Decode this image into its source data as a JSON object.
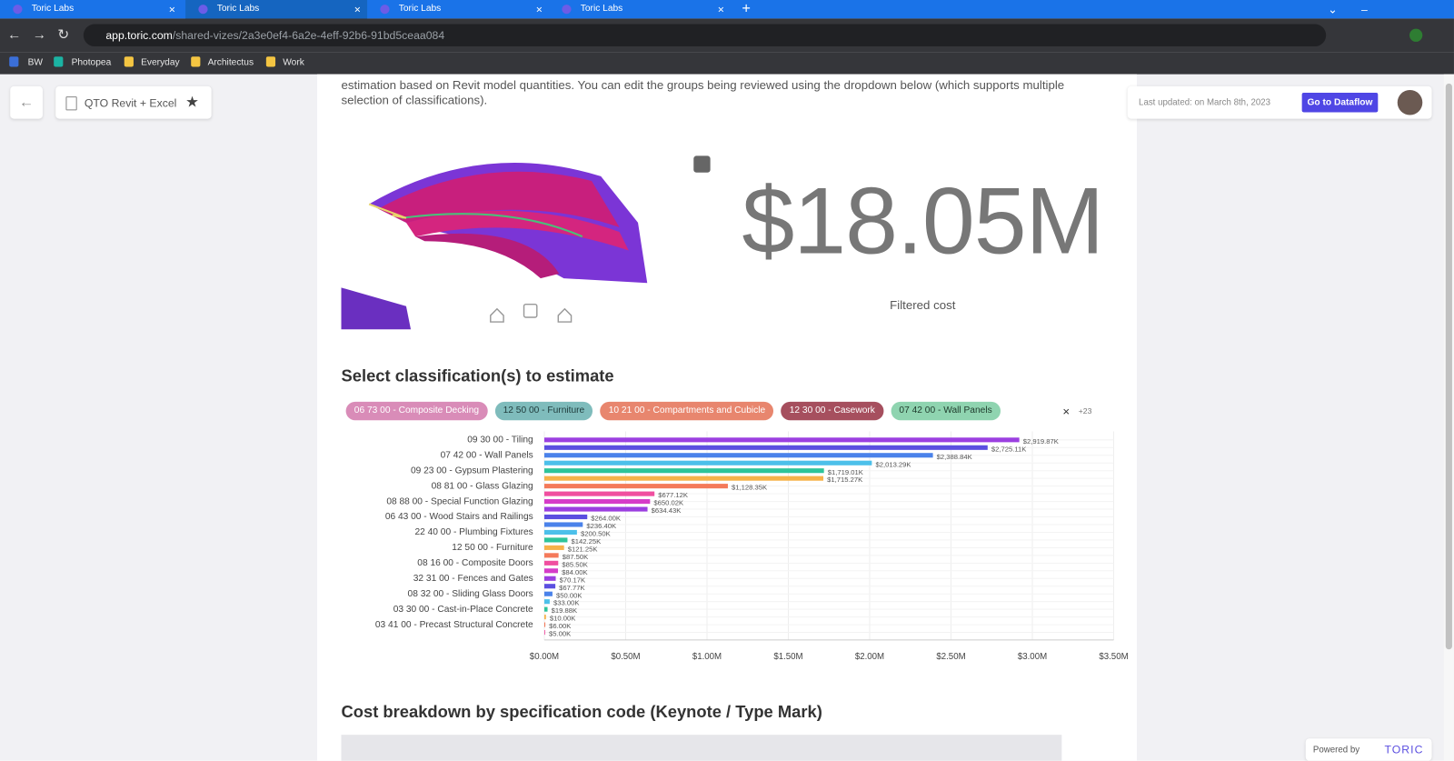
{
  "browser": {
    "tabs": [
      "Toric Labs",
      "Toric Labs",
      "Toric Labs",
      "Toric Labs"
    ],
    "url_host": "app.toric.com",
    "url_path": "/shared-vizes/2a3e0ef4-6a2e-4eff-92b6-91bd5ceaa084",
    "bookmarks": [
      "BW",
      "Photopea",
      "Everyday",
      "Architectus",
      "Work"
    ]
  },
  "header": {
    "title": "QTO Revit + Excel",
    "last_updated": "Last updated: on March 8th, 2023",
    "button": "Go to Dataflow"
  },
  "intro": "estimation based on Revit model quantities. You can edit the groups being reviewed using the dropdown below (which supports multiple selection of classifications).",
  "kpi": {
    "value": "$18.05M",
    "label": "Filtered cost"
  },
  "section_title": "Select classification(s) to estimate",
  "chips": [
    {
      "label": "06 73 00 - Composite Decking",
      "color": "#d98cb8",
      "text_color": "#ffffff"
    },
    {
      "label": "12 50 00 - Furniture",
      "color": "#7fbcbc",
      "text_color": "#1f3b3b"
    },
    {
      "label": "10 21 00 - Compartments and Cubicle",
      "color": "#e8866e",
      "text_color": "#ffffff"
    },
    {
      "label": "12 30 00 - Casework",
      "color": "#a64f5e",
      "text_color": "#ffffff"
    },
    {
      "label": "07 42 00 - Wall Panels",
      "color": "#8fd4b0",
      "text_color": "#1f3b2c"
    }
  ],
  "chips_more": "+23",
  "chart_data": {
    "type": "hbar",
    "categories": [
      "09 30 00 - Tiling",
      null,
      "07 42 00 - Wall Panels",
      null,
      "09 23 00 - Gypsum Plastering",
      null,
      "08 81 00 - Glass Glazing",
      null,
      "08 88 00 - Special Function Glazing",
      null,
      "06 43 00 - Wood Stairs and Railings",
      null,
      "22 40 00 - Plumbing Fixtures",
      null,
      "12 50 00 - Furniture",
      null,
      "08 16 00 - Composite Doors",
      null,
      "32 31 00 - Fences and Gates",
      null,
      "08 32 00 - Sliding Glass Doors",
      null,
      "03 30 00 - Cast-in-Place Concrete",
      null,
      "03 41 00 - Precast Structural Concrete",
      null
    ],
    "values": [
      2919870,
      2725110,
      2388840,
      2013290,
      1719010,
      1715270,
      1128350,
      677120,
      650020,
      634430,
      264000,
      236400,
      200500,
      142250,
      121250,
      87500,
      85500,
      84000,
      70170,
      67770,
      50000,
      33000,
      19880,
      10000,
      6000,
      5000
    ],
    "value_labels": [
      "$2,919.87K",
      "$2,725.11K",
      "$2,388.84K",
      "$2,013.29K",
      "$1,719.01K",
      "$1,715.27K",
      "$1,128.35K",
      "$677.12K",
      "$650.02K",
      "$634.43K",
      "$264.00K",
      "$236.40K",
      "$200.50K",
      "$142.25K",
      "$121.25K",
      "$87.50K",
      "$85.50K",
      "$84.00K",
      "$70.17K",
      "$67.77K",
      "$50.00K",
      "$33.00K",
      "$19.88K",
      "$10.00K",
      "$6.00K",
      "$5.00K"
    ],
    "palette": [
      "#9b3fe0",
      "#5b4fe0",
      "#4a82ea",
      "#4cc0ea",
      "#2ec49a",
      "#f7b24a",
      "#f47a5a",
      "#f04fa0",
      "#d63cc8"
    ],
    "xlim": [
      0,
      3500000
    ],
    "xticks": [
      {
        "value": 0,
        "label": "$0.00M"
      },
      {
        "value": 500000,
        "label": "$0.50M"
      },
      {
        "value": 1000000,
        "label": "$1.00M"
      },
      {
        "value": 1500000,
        "label": "$1.50M"
      },
      {
        "value": 2000000,
        "label": "$2.00M"
      },
      {
        "value": 2500000,
        "label": "$2.50M"
      },
      {
        "value": 3000000,
        "label": "$3.00M"
      },
      {
        "value": 3500000,
        "label": "$3.50M"
      }
    ],
    "grid": true
  },
  "breakdown_title": "Cost breakdown by specification code (Keynote / Type Mark)",
  "footer": {
    "powered": "Powered by",
    "brand": "TORIC"
  }
}
